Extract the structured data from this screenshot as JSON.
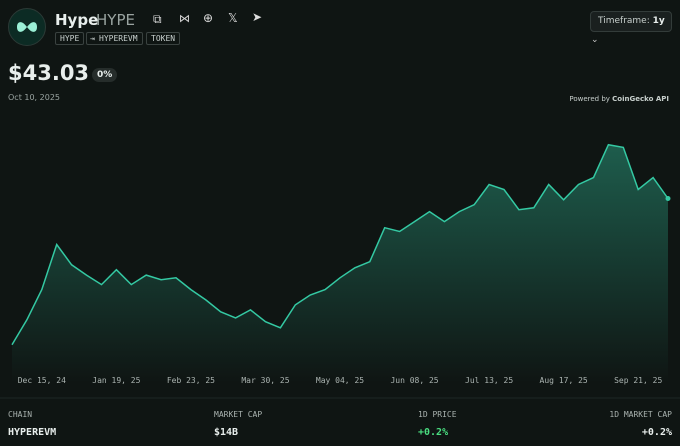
{
  "header": {
    "name": "Hype",
    "symbol": "HYPE",
    "tags": [
      "HYPE",
      "HYPEREVM",
      "TOKEN"
    ],
    "timeframe_label": "Timeframe:",
    "timeframe_value": "1y"
  },
  "price": {
    "value": "$43.03",
    "change": "0%",
    "date": "Oct 10, 2025",
    "powered_by": "Powered by",
    "provider": "CoinGecko API"
  },
  "chart_data": {
    "type": "line",
    "color": "#34c9a3",
    "categories": [
      null,
      null,
      "Dec 15, 24",
      null,
      null,
      null,
      null,
      "Jan 19, 25",
      null,
      null,
      null,
      null,
      "Feb 23, 25",
      null,
      null,
      null,
      null,
      "Mar 30, 25",
      null,
      null,
      null,
      null,
      "May 04, 25",
      null,
      null,
      null,
      null,
      "Jun 08, 25",
      null,
      null,
      null,
      null,
      "Jul 13, 25",
      null,
      null,
      null,
      null,
      "Aug 17, 25",
      null,
      null,
      null,
      null,
      "Sep 21, 25",
      null,
      null
    ],
    "values": [
      4.8,
      11.3,
      19.2,
      31,
      25.7,
      23,
      20.5,
      24.4,
      20.5,
      23,
      21.8,
      22.3,
      19.2,
      16.5,
      13.4,
      11.8,
      13.9,
      10.8,
      9.2,
      15.2,
      17.8,
      19.2,
      22.3,
      24.9,
      26.5,
      35.4,
      34.4,
      37,
      39.6,
      37,
      39.6,
      41.4,
      46.7,
      45.4,
      40.1,
      40.6,
      46.7,
      42.7,
      46.7,
      48.5,
      57.1,
      56.4,
      45.4,
      48.5,
      43.03
    ],
    "ylim": [
      0,
      62
    ]
  },
  "stats": [
    {
      "label": "CHAIN",
      "value": "HYPEREVM"
    },
    {
      "label": "MARKET CAP",
      "value": "$14B"
    },
    {
      "label": "1D PRICE",
      "value": "+0.2%"
    },
    {
      "label": "1D MARKET CAP",
      "value": "+0.2%"
    }
  ]
}
